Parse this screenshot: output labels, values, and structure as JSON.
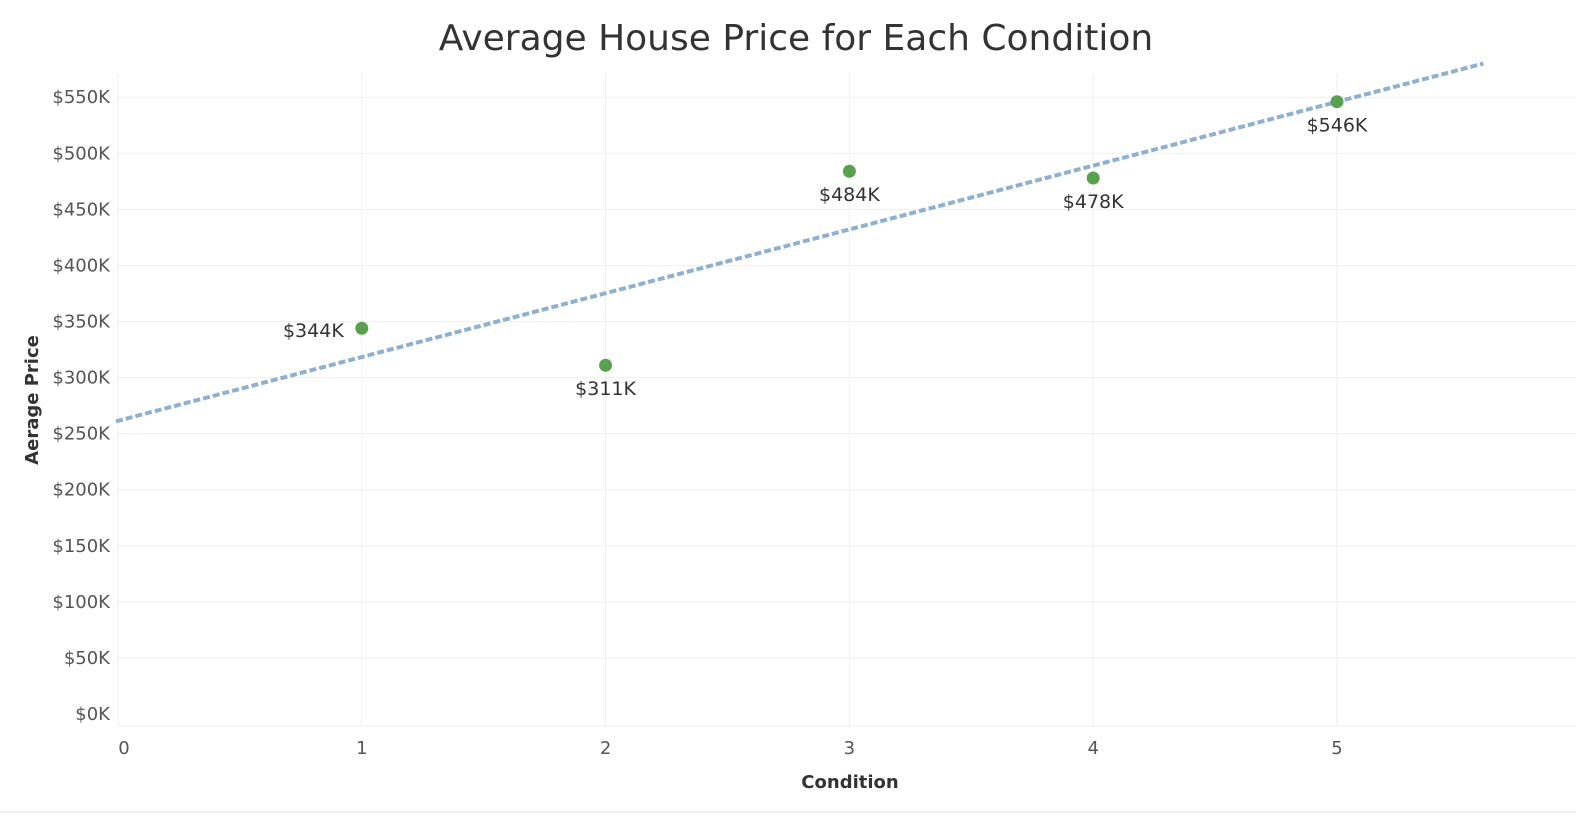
{
  "chart_data": {
    "type": "scatter",
    "title": "Average House Price for Each Condition",
    "xlabel": "Condition",
    "ylabel": "Aerage Price",
    "x_ticks": [
      0,
      1,
      2,
      3,
      4,
      5
    ],
    "y_ticks": [
      0,
      50000,
      100000,
      150000,
      200000,
      250000,
      300000,
      350000,
      400000,
      450000,
      500000,
      550000
    ],
    "y_tick_labels": [
      "$0K",
      "$50K",
      "$100K",
      "$150K",
      "$200K",
      "$250K",
      "$300K",
      "$350K",
      "$400K",
      "$450K",
      "$500K",
      "$550K"
    ],
    "xlim": [
      0,
      5.85
    ],
    "ylim": [
      0,
      580000
    ],
    "grid": true,
    "series": [
      {
        "points": [
          {
            "x": 1,
            "y": 344000,
            "label": "$344K"
          },
          {
            "x": 2,
            "y": 311000,
            "label": "$311K"
          },
          {
            "x": 3,
            "y": 484000,
            "label": "$484K"
          },
          {
            "x": 4,
            "y": 478000,
            "label": "$478K"
          },
          {
            "x": 5,
            "y": 546000,
            "label": "$546K"
          }
        ]
      }
    ],
    "trend_line": {
      "style": "dashed",
      "start": {
        "x": 0,
        "y": 261000
      },
      "end": {
        "x": 5.6,
        "y": 580000
      }
    },
    "colors": {
      "points": "#59a14f",
      "trend_line": "#8fb0d0",
      "grid": "#efefef"
    }
  }
}
